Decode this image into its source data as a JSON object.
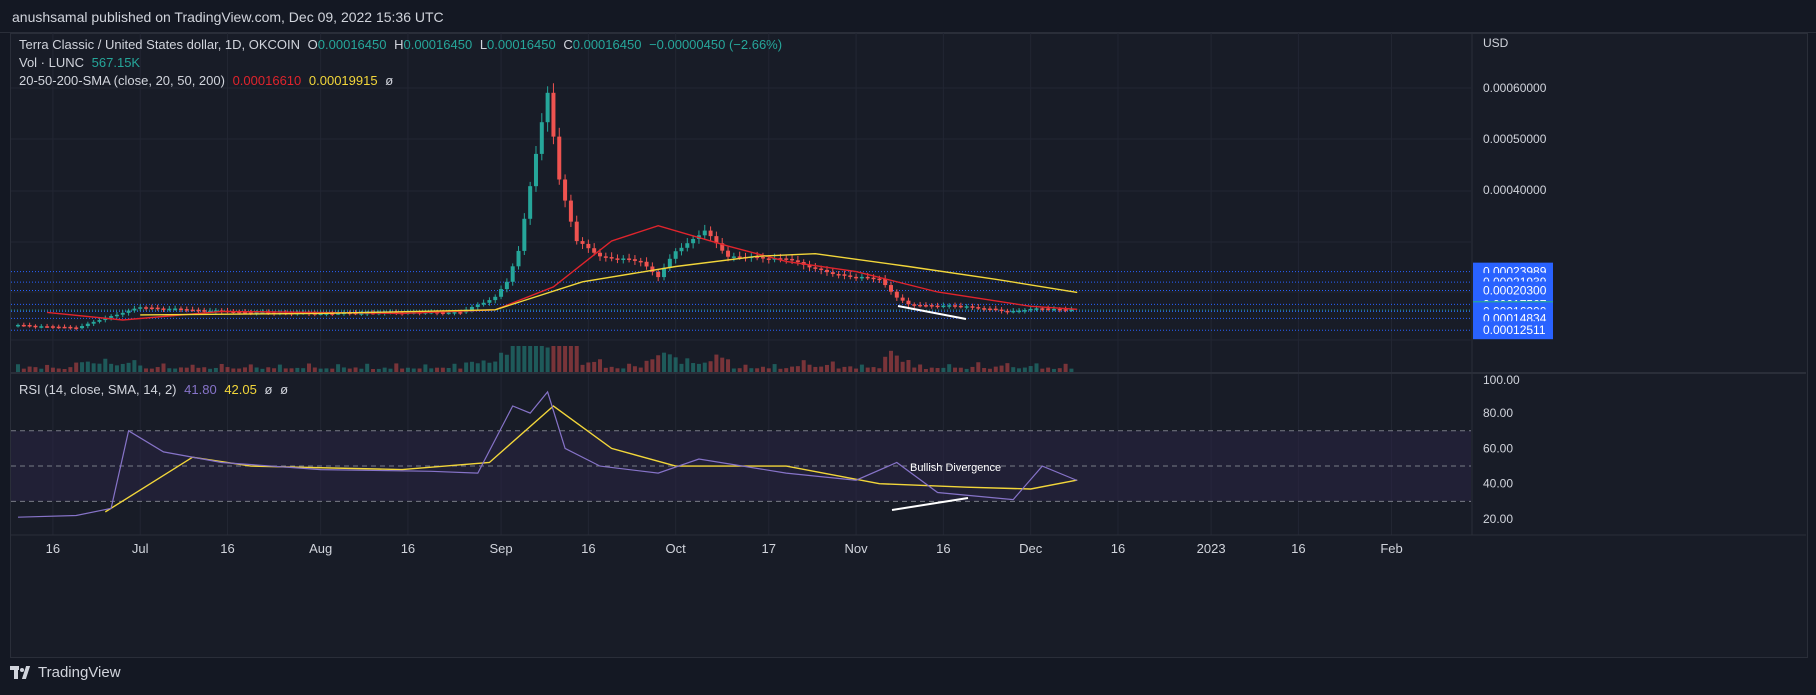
{
  "header": {
    "publisher": "anushsamal published on TradingView.com, Dec 09, 2022 15:36 UTC"
  },
  "legend": {
    "symbol": "Terra Classic / United States dollar, 1D, OKCOIN",
    "o_label": "O",
    "o": "0.00016450",
    "h_label": "H",
    "h": "0.00016450",
    "l_label": "L",
    "l": "0.00016450",
    "c_label": "C",
    "c": "0.00016450",
    "change": "−0.00000450 (−2.66%)",
    "vol_label": "Vol · LUNC",
    "vol": "567.15K",
    "sma_label": "20-50-200-SMA (close, 20, 50, 200)",
    "sma20": "0.00016610",
    "sma50": "0.00019915",
    "sma200": "ø",
    "rsi_label": "RSI (14, close, SMA, 14, 2)",
    "rsi": "41.80",
    "rsi_sma": "42.05",
    "rsi_extra1": "ø",
    "rsi_extra2": "ø"
  },
  "annotations": {
    "divergence": "Bullish Divergence"
  },
  "footer": {
    "brand": "TradingView"
  },
  "colors": {
    "up": "#26a69a",
    "down": "#ef5350",
    "sma20": "#e0242c",
    "sma50": "#f2d63a",
    "rsi": "#8673c8",
    "rsi_sma": "#f2d63a",
    "level": "#2962ff",
    "last_price": "#26a69a"
  },
  "chart_data": [
    {
      "type": "candlestick",
      "title": "Terra Classic / United States dollar, 1D, OKCOIN",
      "currency_label": "USD",
      "x_tick_labels": [
        "16",
        "Jul",
        "16",
        "Aug",
        "16",
        "Sep",
        "16",
        "Oct",
        "17",
        "Nov",
        "16",
        "Dec",
        "16",
        "2023",
        "16",
        "Feb"
      ],
      "y_tick_labels": [
        "0.00060000",
        "0.00050000",
        "0.00040000"
      ],
      "ylim": [
        0.000125,
        0.00062
      ],
      "price_levels": [
        "0.00023989",
        "0.00021939",
        "0.00020300",
        "0.00017567",
        "0.00016450",
        "0.00016200",
        "0.00014834",
        "0.00012511"
      ],
      "last_price": "0.00016450",
      "price_series": [
        {
          "date": "2022-06-10",
          "value": 0.000135
        },
        {
          "date": "2022-06-20",
          "value": 0.00013
        },
        {
          "date": "2022-06-28",
          "value": 0.00016
        },
        {
          "date": "2022-07-01",
          "value": 0.00017
        },
        {
          "date": "2022-07-10",
          "value": 0.000165
        },
        {
          "date": "2022-07-20",
          "value": 0.00016
        },
        {
          "date": "2022-08-01",
          "value": 0.000158
        },
        {
          "date": "2022-08-15",
          "value": 0.00016
        },
        {
          "date": "2022-08-25",
          "value": 0.00016
        },
        {
          "date": "2022-08-31",
          "value": 0.00019
        },
        {
          "date": "2022-09-02",
          "value": 0.00022
        },
        {
          "date": "2022-09-04",
          "value": 0.00028
        },
        {
          "date": "2022-09-06",
          "value": 0.00041
        },
        {
          "date": "2022-09-08",
          "value": 0.00053
        },
        {
          "date": "2022-09-09",
          "value": 0.00059
        },
        {
          "date": "2022-09-11",
          "value": 0.00042
        },
        {
          "date": "2022-09-14",
          "value": 0.0003
        },
        {
          "date": "2022-09-18",
          "value": 0.00027
        },
        {
          "date": "2022-09-25",
          "value": 0.00026
        },
        {
          "date": "2022-09-28",
          "value": 0.00023
        },
        {
          "date": "2022-10-01",
          "value": 0.00028
        },
        {
          "date": "2022-10-06",
          "value": 0.00032
        },
        {
          "date": "2022-10-10",
          "value": 0.00027
        },
        {
          "date": "2022-10-20",
          "value": 0.000265
        },
        {
          "date": "2022-10-28",
          "value": 0.000235
        },
        {
          "date": "2022-11-05",
          "value": 0.000225
        },
        {
          "date": "2022-11-08",
          "value": 0.00019
        },
        {
          "date": "2022-11-10",
          "value": 0.000175
        },
        {
          "date": "2022-11-20",
          "value": 0.000172
        },
        {
          "date": "2022-11-27",
          "value": 0.000162
        },
        {
          "date": "2022-12-03",
          "value": 0.000168
        },
        {
          "date": "2022-12-09",
          "value": 0.0001645
        }
      ],
      "sma20": [
        {
          "date": "2022-06-15",
          "value": 0.00016
        },
        {
          "date": "2022-06-28",
          "value": 0.000145
        },
        {
          "date": "2022-07-15",
          "value": 0.000162
        },
        {
          "date": "2022-08-15",
          "value": 0.000158
        },
        {
          "date": "2022-08-31",
          "value": 0.000165
        },
        {
          "date": "2022-09-10",
          "value": 0.00021
        },
        {
          "date": "2022-09-20",
          "value": 0.0003
        },
        {
          "date": "2022-09-28",
          "value": 0.00033
        },
        {
          "date": "2022-10-10",
          "value": 0.00029
        },
        {
          "date": "2022-10-20",
          "value": 0.00026
        },
        {
          "date": "2022-11-01",
          "value": 0.00024
        },
        {
          "date": "2022-11-15",
          "value": 0.0002
        },
        {
          "date": "2022-12-01",
          "value": 0.000172
        },
        {
          "date": "2022-12-09",
          "value": 0.0001661
        }
      ],
      "sma50": [
        {
          "date": "2022-07-01",
          "value": 0.000155
        },
        {
          "date": "2022-08-01",
          "value": 0.000158
        },
        {
          "date": "2022-08-31",
          "value": 0.000165
        },
        {
          "date": "2022-09-15",
          "value": 0.00022
        },
        {
          "date": "2022-10-01",
          "value": 0.00025
        },
        {
          "date": "2022-10-15",
          "value": 0.00027
        },
        {
          "date": "2022-10-25",
          "value": 0.000275
        },
        {
          "date": "2022-11-10",
          "value": 0.00025
        },
        {
          "date": "2022-11-25",
          "value": 0.000225
        },
        {
          "date": "2022-12-09",
          "value": 0.00019915
        }
      ]
    },
    {
      "type": "line",
      "title": "RSI (14, close, SMA, 14, 2)",
      "y_tick_labels": [
        "100.00",
        "80.00",
        "60.00",
        "40.00",
        "20.00"
      ],
      "ylim": [
        10,
        100
      ],
      "bands": [
        30,
        50,
        70
      ],
      "series": [
        {
          "name": "RSI",
          "points": [
            {
              "date": "2022-06-10",
              "value": 21
            },
            {
              "date": "2022-06-20",
              "value": 22
            },
            {
              "date": "2022-06-26",
              "value": 26
            },
            {
              "date": "2022-06-29",
              "value": 70
            },
            {
              "date": "2022-07-05",
              "value": 58
            },
            {
              "date": "2022-07-15",
              "value": 52
            },
            {
              "date": "2022-08-01",
              "value": 48
            },
            {
              "date": "2022-08-20",
              "value": 47
            },
            {
              "date": "2022-08-28",
              "value": 46
            },
            {
              "date": "2022-09-03",
              "value": 84
            },
            {
              "date": "2022-09-06",
              "value": 80
            },
            {
              "date": "2022-09-09",
              "value": 92
            },
            {
              "date": "2022-09-12",
              "value": 60
            },
            {
              "date": "2022-09-18",
              "value": 50
            },
            {
              "date": "2022-09-28",
              "value": 46
            },
            {
              "date": "2022-10-05",
              "value": 54
            },
            {
              "date": "2022-10-20",
              "value": 46
            },
            {
              "date": "2022-11-01",
              "value": 42
            },
            {
              "date": "2022-11-08",
              "value": 52
            },
            {
              "date": "2022-11-15",
              "value": 35
            },
            {
              "date": "2022-11-28",
              "value": 31
            },
            {
              "date": "2022-12-03",
              "value": 50
            },
            {
              "date": "2022-12-09",
              "value": 41.8
            }
          ]
        },
        {
          "name": "RSI SMA",
          "points": [
            {
              "date": "2022-06-25",
              "value": 24
            },
            {
              "date": "2022-07-10",
              "value": 55
            },
            {
              "date": "2022-07-20",
              "value": 50
            },
            {
              "date": "2022-08-15",
              "value": 48
            },
            {
              "date": "2022-08-30",
              "value": 52
            },
            {
              "date": "2022-09-10",
              "value": 84
            },
            {
              "date": "2022-09-20",
              "value": 60
            },
            {
              "date": "2022-10-01",
              "value": 50
            },
            {
              "date": "2022-10-20",
              "value": 50
            },
            {
              "date": "2022-11-05",
              "value": 40
            },
            {
              "date": "2022-11-20",
              "value": 38
            },
            {
              "date": "2022-12-01",
              "value": 37
            },
            {
              "date": "2022-12-09",
              "value": 42.05
            }
          ]
        }
      ]
    }
  ]
}
